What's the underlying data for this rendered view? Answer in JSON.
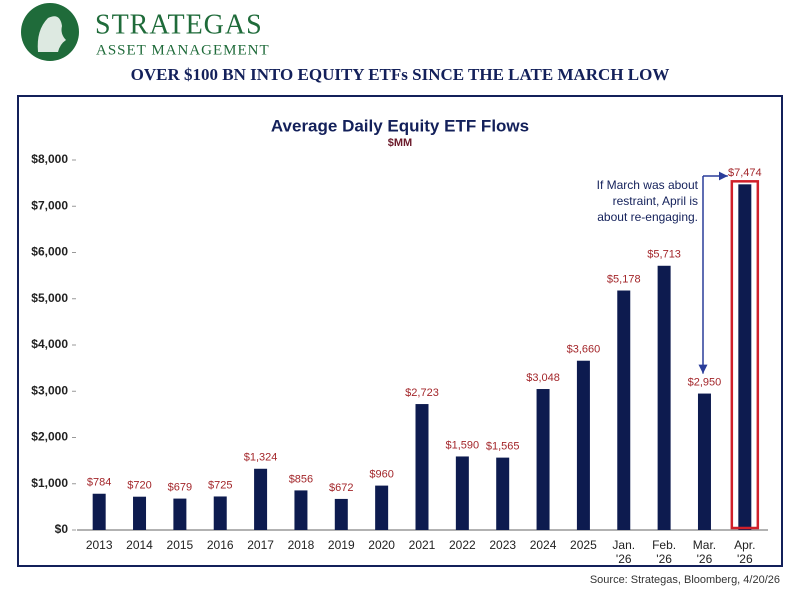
{
  "header": {
    "brand": "STRATEGAS",
    "tagline": "ASSET MANAGEMENT",
    "headline": "OVER $100 BN INTO EQUITY ETFs SINCE THE LATE MARCH LOW"
  },
  "chart_data": {
    "type": "bar",
    "title": "Average Daily Equity ETF Flows",
    "subtitle": "$MM",
    "categories": [
      "2013",
      "2014",
      "2015",
      "2016",
      "2017",
      "2018",
      "2019",
      "2020",
      "2021",
      "2022",
      "2023",
      "2024",
      "2025",
      "Jan. '26",
      "Feb. '26",
      "Mar. '26",
      "Apr. '26"
    ],
    "values": [
      784,
      720,
      679,
      725,
      1324,
      856,
      672,
      960,
      2723,
      1590,
      1565,
      3048,
      3660,
      5178,
      5713,
      2950,
      7474
    ],
    "value_labels": [
      "$784",
      "$720",
      "$679",
      "$725",
      "$1,324",
      "$856",
      "$672",
      "$960",
      "$2,723",
      "$1,590",
      "$1,565",
      "$3,048",
      "$3,660",
      "$5,178",
      "$5,713",
      "$2,950",
      "$7,474"
    ],
    "color": "#0d1b4f",
    "label_color": "#a3262a",
    "ylim": [
      0,
      8000
    ],
    "yticks": [
      {
        "value": 0,
        "label": "$0"
      },
      {
        "value": 1000,
        "label": "$1,000"
      },
      {
        "value": 2000,
        "label": "$2,000"
      },
      {
        "value": 3000,
        "label": "$3,000"
      },
      {
        "value": 4000,
        "label": "$4,000"
      },
      {
        "value": 5000,
        "label": "$5,000"
      },
      {
        "value": 6000,
        "label": "$6,000"
      },
      {
        "value": 7000,
        "label": "$7,000"
      },
      {
        "value": 8000,
        "label": "$8,000"
      }
    ],
    "annotation": [
      "If March was about",
      "restraint, April is",
      "about re-engaging."
    ]
  },
  "footer": {
    "source": "Source: Strategas, Bloomberg, 4/20/26"
  }
}
